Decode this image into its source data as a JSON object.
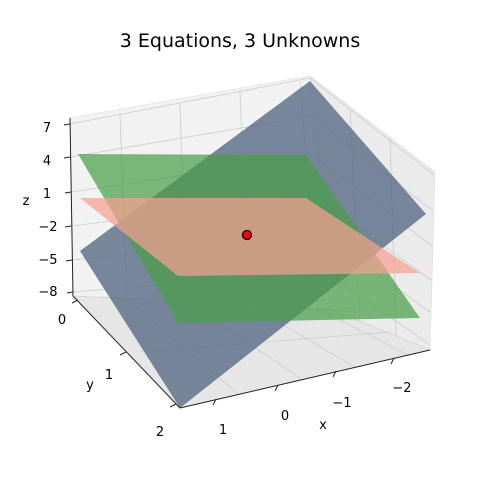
{
  "chart_data": {
    "type": "surface3d",
    "title": "3 Equations, 3 Unknowns",
    "xlabel": "x",
    "ylabel": "y",
    "zlabel": "z",
    "x_ticks": [
      "1",
      "0",
      "−1",
      "−2"
    ],
    "y_ticks": [
      "0",
      "1",
      "2"
    ],
    "z_ticks": [
      "7",
      "4",
      "1",
      "−2",
      "−5",
      "−8"
    ],
    "xlim": [
      -2.5,
      1.5
    ],
    "ylim": [
      0,
      2
    ],
    "zlim": [
      -8,
      7
    ],
    "planes": [
      {
        "color": "#5b6e87",
        "edges_z": {
          "near": -5.5,
          "far": 7
        }
      },
      {
        "color": "#4a9e4a",
        "edges_z": {
          "near": 4,
          "far": -9
        }
      },
      {
        "color": "#f5a090",
        "edges_z": {
          "left": -1,
          "right": -3
        }
      }
    ],
    "solution_point": {
      "z": -2.2,
      "color": "#ff0000"
    },
    "grid": true
  }
}
